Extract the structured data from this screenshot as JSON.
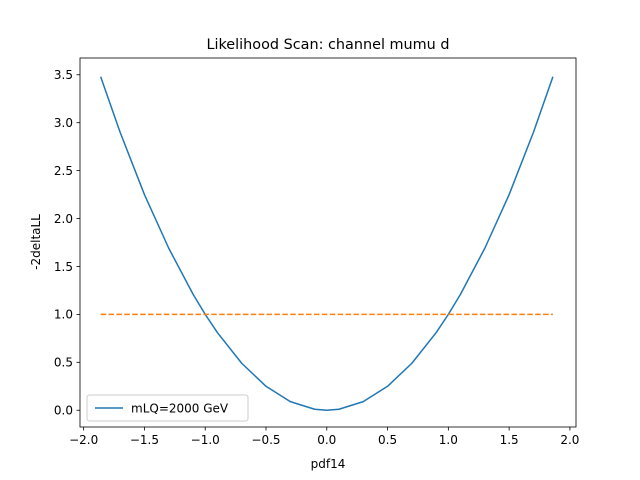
{
  "chart_data": {
    "type": "line",
    "title": "Likelihood Scan: channel mumu d",
    "xlabel": "pdf14",
    "ylabel": "-2deltaLL",
    "xlim": [
      -2.03,
      2.05
    ],
    "ylim": [
      -0.175,
      3.675
    ],
    "x_ticks": [
      -2.0,
      -1.5,
      -1.0,
      -0.5,
      0.0,
      0.5,
      1.0,
      1.5,
      2.0
    ],
    "x_tick_labels": [
      "−2.0",
      "−1.5",
      "−1.0",
      "−0.5",
      "0.0",
      "0.5",
      "1.0",
      "1.5",
      "2.0"
    ],
    "y_ticks": [
      0.0,
      0.5,
      1.0,
      1.5,
      2.0,
      2.5,
      3.0,
      3.5
    ],
    "y_tick_labels": [
      "0.0",
      "0.5",
      "1.0",
      "1.5",
      "2.0",
      "2.5",
      "3.0",
      "3.5"
    ],
    "grid": false,
    "legend_position": "lower-left",
    "series": [
      {
        "name": "mLQ=2000 GeV",
        "color": "#1f77b4",
        "style": "solid",
        "x": [
          -1.86,
          -1.7,
          -1.5,
          -1.3,
          -1.1,
          -1.0,
          -0.9,
          -0.7,
          -0.5,
          -0.3,
          -0.1,
          0.0,
          0.1,
          0.3,
          0.5,
          0.7,
          0.9,
          1.0,
          1.1,
          1.3,
          1.5,
          1.7,
          1.86
        ],
        "y": [
          3.48,
          2.9,
          2.25,
          1.69,
          1.21,
          1.0,
          0.81,
          0.49,
          0.25,
          0.09,
          0.01,
          0.0,
          0.01,
          0.09,
          0.25,
          0.49,
          0.81,
          1.0,
          1.21,
          1.69,
          2.25,
          2.9,
          3.48
        ]
      },
      {
        "color": "#ff7f0e",
        "style": "dashed",
        "x": [
          -1.86,
          1.86
        ],
        "y": [
          1.0,
          1.0
        ]
      }
    ]
  }
}
